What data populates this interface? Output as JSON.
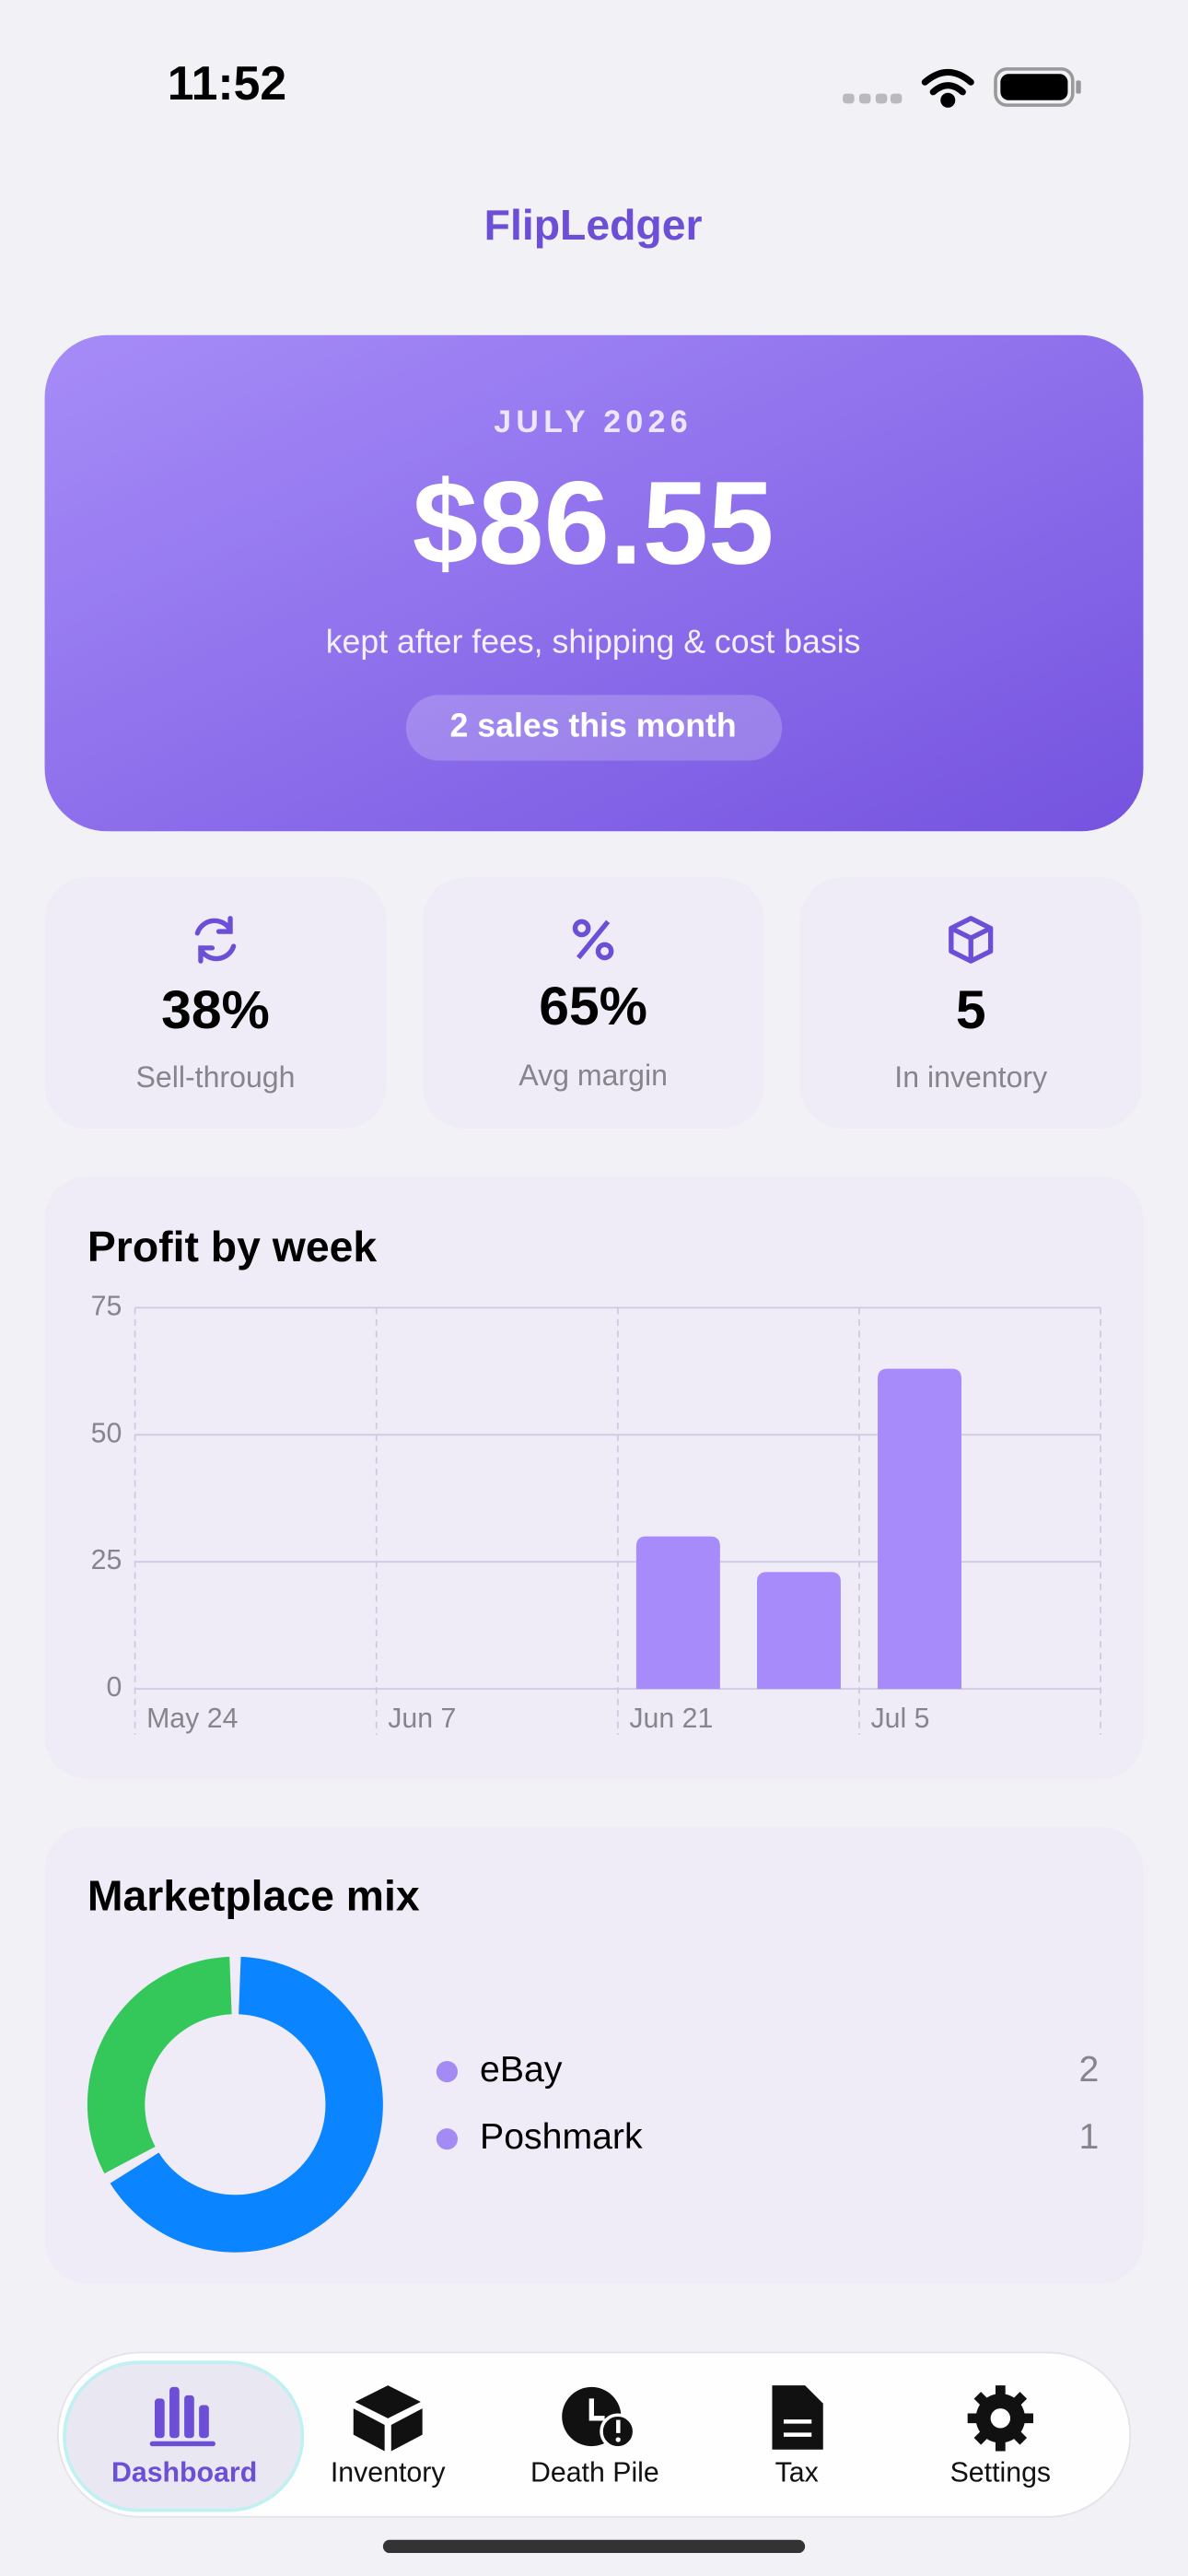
{
  "status_bar": {
    "time": "11:52"
  },
  "header": {
    "title": "FlipLedger"
  },
  "summary": {
    "period": "JULY 2026",
    "amount": "$86.55",
    "caption": "kept after fees, shipping & cost basis",
    "badge": "2 sales this month"
  },
  "stats": [
    {
      "value": "38%",
      "label": "Sell-through"
    },
    {
      "value": "65%",
      "label": "Avg margin"
    },
    {
      "value": "5",
      "label": "In inventory"
    }
  ],
  "chart_data": [
    {
      "type": "bar",
      "title": "Profit by week",
      "categories": [
        "May 24",
        null,
        "Jun 7",
        null,
        "Jun 21",
        null,
        "Jul 5",
        null
      ],
      "values": [
        null,
        null,
        null,
        null,
        30,
        23,
        63,
        null
      ],
      "color": "#a78bfa",
      "ylim": [
        0,
        75
      ],
      "yticks": [
        0,
        25,
        50,
        75
      ],
      "grid": true
    },
    {
      "type": "donut",
      "title": "Marketplace mix",
      "categories": [
        "eBay",
        "Poshmark"
      ],
      "values": [
        2,
        1
      ],
      "colors": [
        "#0a84ff",
        "#34c759"
      ],
      "legend_color": "#a48bf4"
    }
  ],
  "tab_bar": {
    "items": [
      "Dashboard",
      "Inventory",
      "Death Pile",
      "Tax",
      "Settings"
    ],
    "active": 0
  }
}
